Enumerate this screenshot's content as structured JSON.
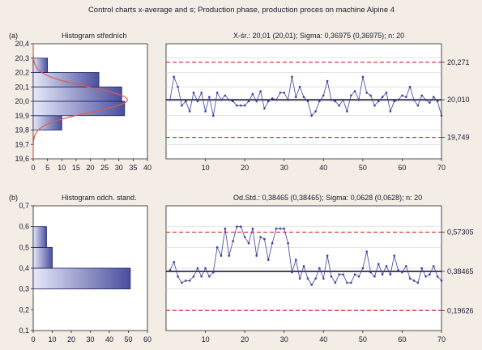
{
  "title": "Control charts x-average and s; Production phase, production proces on machine Alpine 4",
  "colors": {
    "background": "#f3ede6",
    "plot_bg": "#ffffff",
    "bar": "#4a4f9e",
    "bar_light": "#e6e8f8",
    "line": "#3a3fa0",
    "control": "#cc2b2b",
    "center": "#1a1a2e",
    "curve": "#e15a4a"
  },
  "chart_data": [
    {
      "type": "bar",
      "orientation": "horizontal",
      "panel_label": "(a)",
      "title": "Histogram středních",
      "categories": [
        19.65,
        19.75,
        19.85,
        19.95,
        20.05,
        20.15,
        20.25,
        20.35
      ],
      "values": [
        0,
        0,
        10,
        32,
        31,
        23,
        5,
        0
      ],
      "xlim": [
        0,
        40
      ],
      "ylim": [
        19.6,
        20.4
      ],
      "xticks": [
        0,
        5,
        10,
        15,
        20,
        25,
        30,
        35,
        40
      ],
      "yticks": [
        "19,6",
        "19,7",
        "19,8",
        "19,9",
        "20,0",
        "20,1",
        "20,2",
        "20,3",
        "20,4"
      ],
      "normal_curve": {
        "mean": 20.01,
        "sd": 0.0868,
        "peak": 33
      },
      "grid": false
    },
    {
      "type": "line",
      "title": "X-śr.: 20,01 (20,01); Sigma: 0,36975 (0,36975); n: 20",
      "x": [
        1,
        2,
        3,
        4,
        5,
        6,
        7,
        8,
        9,
        10,
        11,
        12,
        13,
        14,
        15,
        16,
        17,
        18,
        19,
        20,
        21,
        22,
        23,
        24,
        25,
        26,
        27,
        28,
        29,
        30,
        31,
        32,
        33,
        34,
        35,
        36,
        37,
        38,
        39,
        40,
        41,
        42,
        43,
        44,
        45,
        46,
        47,
        48,
        49,
        50,
        51,
        52,
        53,
        54,
        55,
        56,
        57,
        58,
        59,
        60,
        61,
        62,
        63,
        64,
        65,
        66,
        67,
        68,
        69,
        70
      ],
      "y": [
        20.01,
        20.17,
        20.1,
        19.97,
        20.0,
        19.93,
        20.06,
        20.0,
        20.06,
        19.93,
        20.03,
        19.9,
        20.06,
        20.01,
        20.04,
        20.01,
        20.0,
        19.97,
        19.97,
        19.97,
        20.0,
        20.05,
        20.0,
        20.07,
        19.95,
        20.0,
        20.02,
        20.01,
        20.06,
        20.06,
        20.01,
        20.17,
        20.03,
        20.1,
        20.03,
        20.0,
        19.9,
        19.93,
        20.0,
        20.04,
        20.14,
        20.01,
        20.0,
        19.97,
        20.01,
        19.93,
        20.04,
        20.07,
        20.01,
        20.17,
        20.06,
        20.04,
        19.97,
        20.0,
        20.03,
        20.06,
        19.93,
        20.0,
        20.01,
        20.04,
        20.03,
        20.1,
        20.01,
        19.97,
        20.04,
        20.01,
        19.99,
        20.03,
        20.0,
        19.9
      ],
      "center": 20.01,
      "ucl": 20.271,
      "lcl": 19.749,
      "right_labels": [
        "20,271",
        "20,010",
        "19,749"
      ],
      "xlim": [
        0,
        70
      ],
      "ylim": [
        19.6,
        20.4
      ],
      "xticks": [
        10,
        20,
        30,
        40,
        50,
        60,
        70
      ],
      "grid": true
    },
    {
      "type": "bar",
      "orientation": "horizontal",
      "panel_label": "(b)",
      "title": "Histogram odch. stand.",
      "categories": [
        0.35,
        0.45,
        0.55,
        0.65
      ],
      "values": [
        51,
        10,
        7,
        0
      ],
      "xlim": [
        0,
        60
      ],
      "ylim": [
        0.1,
        0.7
      ],
      "xticks": [
        0,
        10,
        20,
        30,
        40,
        50,
        60
      ],
      "yticks": [
        "0,1",
        "0,2",
        "0,3",
        "0,4",
        "0,5",
        "0,6",
        "0,7"
      ],
      "grid": false
    },
    {
      "type": "line",
      "title": "Od.Std.: 0,38465 (0,38465); Sigma: 0,0628 (0,0628); n: 20",
      "x": [
        1,
        2,
        3,
        4,
        5,
        6,
        7,
        8,
        9,
        10,
        11,
        12,
        13,
        14,
        15,
        16,
        17,
        18,
        19,
        20,
        21,
        22,
        23,
        24,
        25,
        26,
        27,
        28,
        29,
        30,
        31,
        32,
        33,
        34,
        35,
        36,
        37,
        38,
        39,
        40,
        41,
        42,
        43,
        44,
        45,
        46,
        47,
        48,
        49,
        50,
        51,
        52,
        53,
        54,
        55,
        56,
        57,
        58,
        59,
        60,
        61,
        62,
        63,
        64,
        65,
        66,
        67,
        68,
        69,
        70
      ],
      "y": [
        0.39,
        0.43,
        0.36,
        0.33,
        0.34,
        0.34,
        0.36,
        0.4,
        0.36,
        0.4,
        0.36,
        0.38,
        0.5,
        0.46,
        0.59,
        0.46,
        0.53,
        0.6,
        0.6,
        0.55,
        0.52,
        0.59,
        0.46,
        0.55,
        0.54,
        0.44,
        0.52,
        0.59,
        0.59,
        0.59,
        0.52,
        0.38,
        0.44,
        0.35,
        0.41,
        0.35,
        0.32,
        0.35,
        0.4,
        0.35,
        0.46,
        0.36,
        0.33,
        0.37,
        0.37,
        0.33,
        0.33,
        0.37,
        0.36,
        0.4,
        0.48,
        0.38,
        0.36,
        0.42,
        0.37,
        0.41,
        0.37,
        0.46,
        0.39,
        0.38,
        0.41,
        0.35,
        0.34,
        0.33,
        0.4,
        0.36,
        0.37,
        0.41,
        0.36,
        0.34
      ],
      "center": 0.38465,
      "ucl": 0.57305,
      "lcl": 0.19626,
      "right_labels": [
        "0,57305",
        "0,38465",
        "0,19626"
      ],
      "xlim": [
        0,
        70
      ],
      "ylim": [
        0.1,
        0.7
      ],
      "xticks": [
        10,
        20,
        30,
        40,
        50,
        60,
        70
      ],
      "grid": true
    }
  ]
}
